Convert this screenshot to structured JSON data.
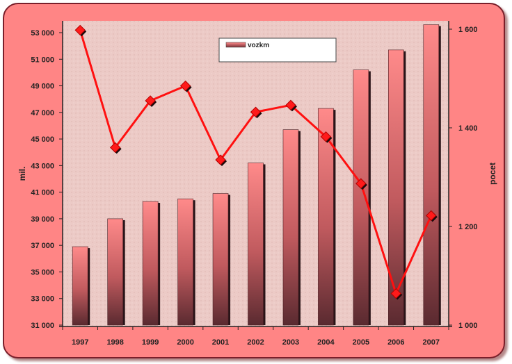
{
  "chart_data": {
    "type": "bar",
    "categories": [
      "1997",
      "1998",
      "1999",
      "2000",
      "2001",
      "2002",
      "2003",
      "2004",
      "2005",
      "2006",
      "2007"
    ],
    "series": [
      {
        "name": "vozkm",
        "type": "bar",
        "axis": "left",
        "values": [
          36900,
          39000,
          40300,
          40500,
          40900,
          43200,
          45700,
          47300,
          50200,
          51700,
          53600
        ]
      },
      {
        "type": "line",
        "axis": "right",
        "values": [
          1598,
          1360,
          1455,
          1485,
          1335,
          1432,
          1446,
          1382,
          1287,
          1064,
          1222
        ]
      }
    ],
    "ylabel": "mil.",
    "y2label": "pocet",
    "ylim": [
      31000,
      54000
    ],
    "y2lim": [
      1000,
      1600
    ],
    "yticks": [
      "31 000",
      "33 000",
      "35 000",
      "37 000",
      "39 000",
      "41 000",
      "43 000",
      "45 000",
      "47 000",
      "49 000",
      "51 000",
      "53 000"
    ],
    "y2ticks": [
      "1 000",
      "1 200",
      "1 400",
      "1 600"
    ],
    "grid": false,
    "legend": "top-center",
    "colors": {
      "bar": "#e07070",
      "line": "#ff1010",
      "frame": "#ff8585",
      "plot": "#eccac6"
    }
  }
}
